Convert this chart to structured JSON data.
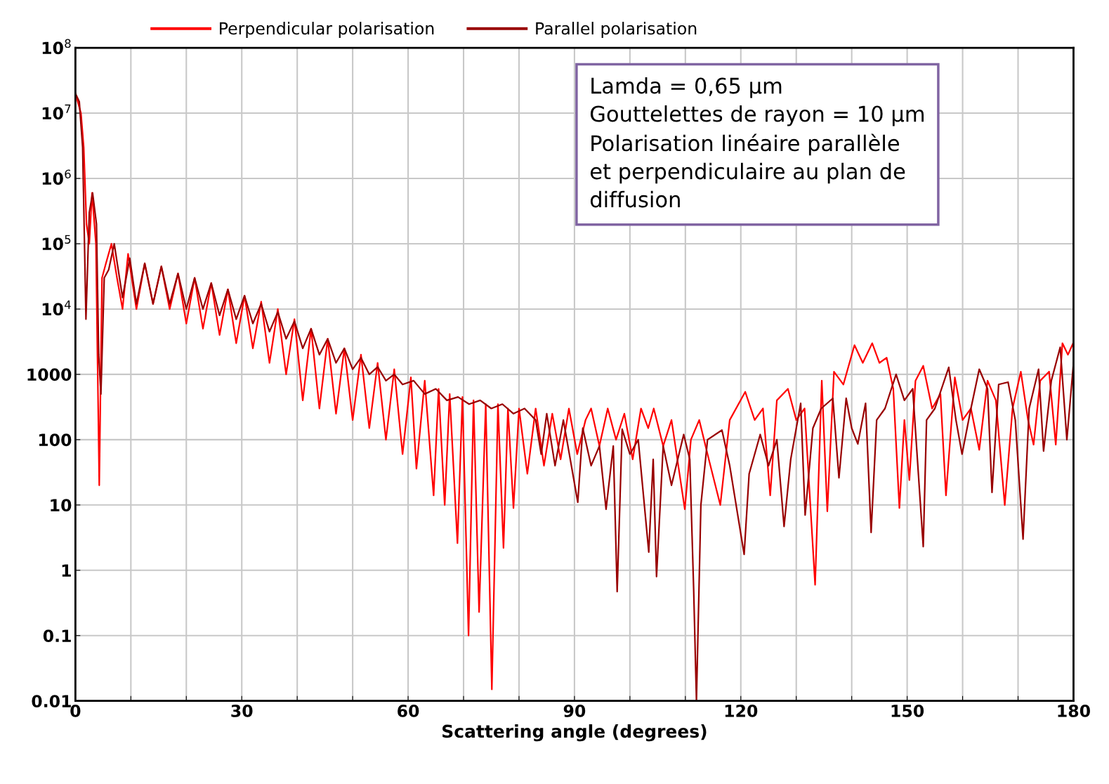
{
  "chart_data": {
    "type": "line",
    "xlabel": "Scattering angle (degrees)",
    "log": "y",
    "grid": true,
    "legend": "top",
    "marker": "none",
    "line_style": "solid",
    "xlim": [
      0,
      180
    ],
    "xticks": [
      0,
      {
        "value": 10,
        "label": null
      },
      {
        "value": 20,
        "label": null
      },
      30,
      {
        "value": 40,
        "label": null
      },
      {
        "value": 50,
        "label": null
      },
      60,
      {
        "value": 70,
        "label": null
      },
      {
        "value": 80,
        "label": null
      },
      90,
      {
        "value": 100,
        "label": null
      },
      {
        "value": 110,
        "label": null
      },
      120,
      {
        "value": 130,
        "label": null
      },
      {
        "value": 140,
        "label": null
      },
      150,
      {
        "value": 160,
        "label": null
      },
      {
        "value": 170,
        "label": null
      },
      180
    ],
    "ylim": [
      0.01,
      100000000
    ],
    "yticks": [
      0.01,
      0.1,
      1,
      10,
      100,
      1000,
      {
        "value": 10000,
        "label": "10$^{4}$"
      },
      {
        "value": 100000,
        "label": "10$^{5}$"
      },
      {
        "value": 1000000,
        "label": "10$^{6}$"
      },
      {
        "value": 10000000,
        "label": "10$^{7}$"
      },
      {
        "value": 100000000,
        "label": "10$^{8}$"
      }
    ],
    "annotations": [
      "Lamda = 0,65 µm\nGouttelettes de rayon = 10 µm\nPolarisation linéaire parallèle\net perpendiculaire au plan de\ndiffusion"
    ],
    "series": [
      {
        "name": "Perpendicular polarisation",
        "color": "#ff0000",
        "x": [
          0,
          1,
          1.5,
          2,
          2.5,
          3,
          3.7,
          4.3,
          4.8,
          5.5,
          6.5,
          7.5,
          8.5,
          9.5,
          11,
          12.5,
          14,
          15.5,
          17,
          18.5,
          20,
          21.5,
          23,
          24.5,
          26,
          27.5,
          29,
          30.5,
          32,
          33.5,
          35,
          36.5,
          38,
          39.5,
          41,
          42.5,
          44,
          45.5,
          47,
          48.5,
          50,
          51.5,
          53,
          54.5,
          56,
          57.5,
          59,
          60.5,
          61.5,
          63,
          64.6,
          65.5,
          66.6,
          67.5,
          68.9,
          69.8,
          70.9,
          71.8,
          72.8,
          74,
          75.1,
          76.2,
          77.2,
          78,
          79,
          80,
          81.5,
          83,
          84.5,
          86,
          87.5,
          89,
          90.5,
          92,
          93,
          94.5,
          96,
          97.5,
          99,
          100.5,
          102,
          103.3,
          104.3,
          106,
          107.5,
          109.9,
          111,
          112.5,
          114,
          116.3,
          118,
          120.8,
          122.5,
          124,
          125.3,
          126.5,
          128.5,
          130,
          131.5,
          133.4,
          134.6,
          135.6,
          136.8,
          138.5,
          140.5,
          142,
          143.7,
          145,
          146.3,
          147.5,
          148.6,
          149.5,
          150.4,
          151.5,
          152.9,
          154.5,
          156,
          157,
          158.6,
          160,
          161.5,
          163,
          164.5,
          166,
          167.6,
          169,
          170.5,
          171.8,
          172.8,
          174,
          175.6,
          176.8,
          178,
          179,
          180
        ],
        "values": [
          20000000,
          10000000,
          3000000,
          200000,
          100000,
          600000,
          100000,
          20,
          30000,
          50000,
          100000,
          30000,
          10000,
          70000,
          10000,
          50000,
          12000,
          45000,
          10000,
          35000,
          6000,
          30000,
          5000,
          25000,
          4000,
          20000,
          3000,
          16000,
          2500,
          13000,
          1500,
          10000,
          1000,
          7000,
          400,
          5000,
          300,
          3500,
          250,
          2500,
          200,
          2000,
          150,
          1500,
          100,
          1200,
          60,
          900,
          36,
          800,
          14,
          600,
          10,
          500,
          2.6,
          450,
          0.1,
          400,
          0.23,
          350,
          0.015,
          350,
          2.2,
          300,
          9,
          300,
          30,
          300,
          40,
          250,
          50,
          300,
          60,
          200,
          300,
          80,
          300,
          100,
          250,
          50,
          300,
          150,
          300,
          80,
          200,
          8.6,
          100,
          200,
          60,
          10,
          200,
          540,
          200,
          300,
          14,
          400,
          600,
          200,
          300,
          0.6,
          800,
          8,
          1100,
          700,
          2800,
          1500,
          3000,
          1500,
          1800,
          600,
          9,
          200,
          24,
          800,
          1350,
          300,
          500,
          14,
          900,
          200,
          300,
          70,
          800,
          400,
          10,
          300,
          1100,
          200,
          84,
          800,
          1100,
          84,
          3000,
          2000,
          3100
        ]
      },
      {
        "name": "Parallel polarisation",
        "color": "#990000",
        "x": [
          0,
          0.7,
          1.3,
          1.9,
          2.5,
          3.1,
          3.8,
          4.2,
          4.6,
          5.2,
          6,
          7,
          8.5,
          9.8,
          11,
          12.5,
          14,
          15.5,
          17,
          18.5,
          20,
          21.5,
          23,
          24.5,
          26,
          27.5,
          29,
          30.5,
          32,
          33.5,
          35,
          36.5,
          38,
          39.5,
          41,
          42.5,
          44,
          45.5,
          47,
          48.5,
          50,
          51.5,
          53,
          54.5,
          56,
          57.5,
          59,
          61,
          63,
          65,
          67,
          69,
          71,
          73,
          75,
          77,
          79,
          81,
          83,
          84,
          85,
          86.5,
          88,
          90.6,
          91.5,
          93,
          94.5,
          95.7,
          97,
          97.7,
          98.6,
          100,
          101.5,
          103.4,
          104.2,
          104.8,
          106,
          107.5,
          109.7,
          110.8,
          111.5,
          112,
          112.8,
          114,
          116.6,
          118,
          120.6,
          121.5,
          123.5,
          125,
          126.5,
          127.8,
          129,
          130.8,
          131.6,
          133,
          134.5,
          136.6,
          137.7,
          139,
          140,
          141.1,
          142.5,
          143.5,
          144.5,
          146,
          148,
          149.5,
          151,
          152.9,
          153.5,
          155,
          157.5,
          158.8,
          159.9,
          161.5,
          163,
          164.5,
          165.3,
          166.5,
          168.2,
          169.5,
          170.9,
          172,
          173.7,
          174.6,
          176,
          177.6,
          178.8,
          180
        ],
        "values": [
          20000000,
          15000000,
          3000000,
          7000,
          300000,
          600000,
          200000,
          2000,
          500,
          30000,
          40000,
          100000,
          15000,
          60000,
          12000,
          50000,
          12000,
          45000,
          12000,
          35000,
          10000,
          30000,
          10000,
          25000,
          8000,
          20000,
          7000,
          16000,
          6000,
          12000,
          4500,
          9000,
          3500,
          6500,
          2500,
          5000,
          2000,
          3500,
          1500,
          2500,
          1200,
          1800,
          1000,
          1300,
          800,
          1000,
          700,
          800,
          500,
          600,
          400,
          450,
          350,
          400,
          300,
          350,
          250,
          300,
          200,
          60,
          250,
          40,
          200,
          11,
          150,
          40,
          80,
          8.6,
          80,
          0.47,
          145,
          60,
          100,
          1.9,
          50,
          0.8,
          80,
          20,
          120,
          50,
          0.5,
          0.01,
          10,
          100,
          140,
          40,
          1.75,
          30,
          120,
          40,
          100,
          4.7,
          50,
          360,
          7,
          150,
          300,
          430,
          26,
          430,
          150,
          86,
          360,
          3.8,
          200,
          300,
          1000,
          400,
          600,
          2.3,
          200,
          300,
          1280,
          200,
          60,
          300,
          1200,
          600,
          15.6,
          700,
          760,
          200,
          3,
          300,
          1200,
          67,
          800,
          2600,
          100,
          1500
        ]
      }
    ]
  }
}
